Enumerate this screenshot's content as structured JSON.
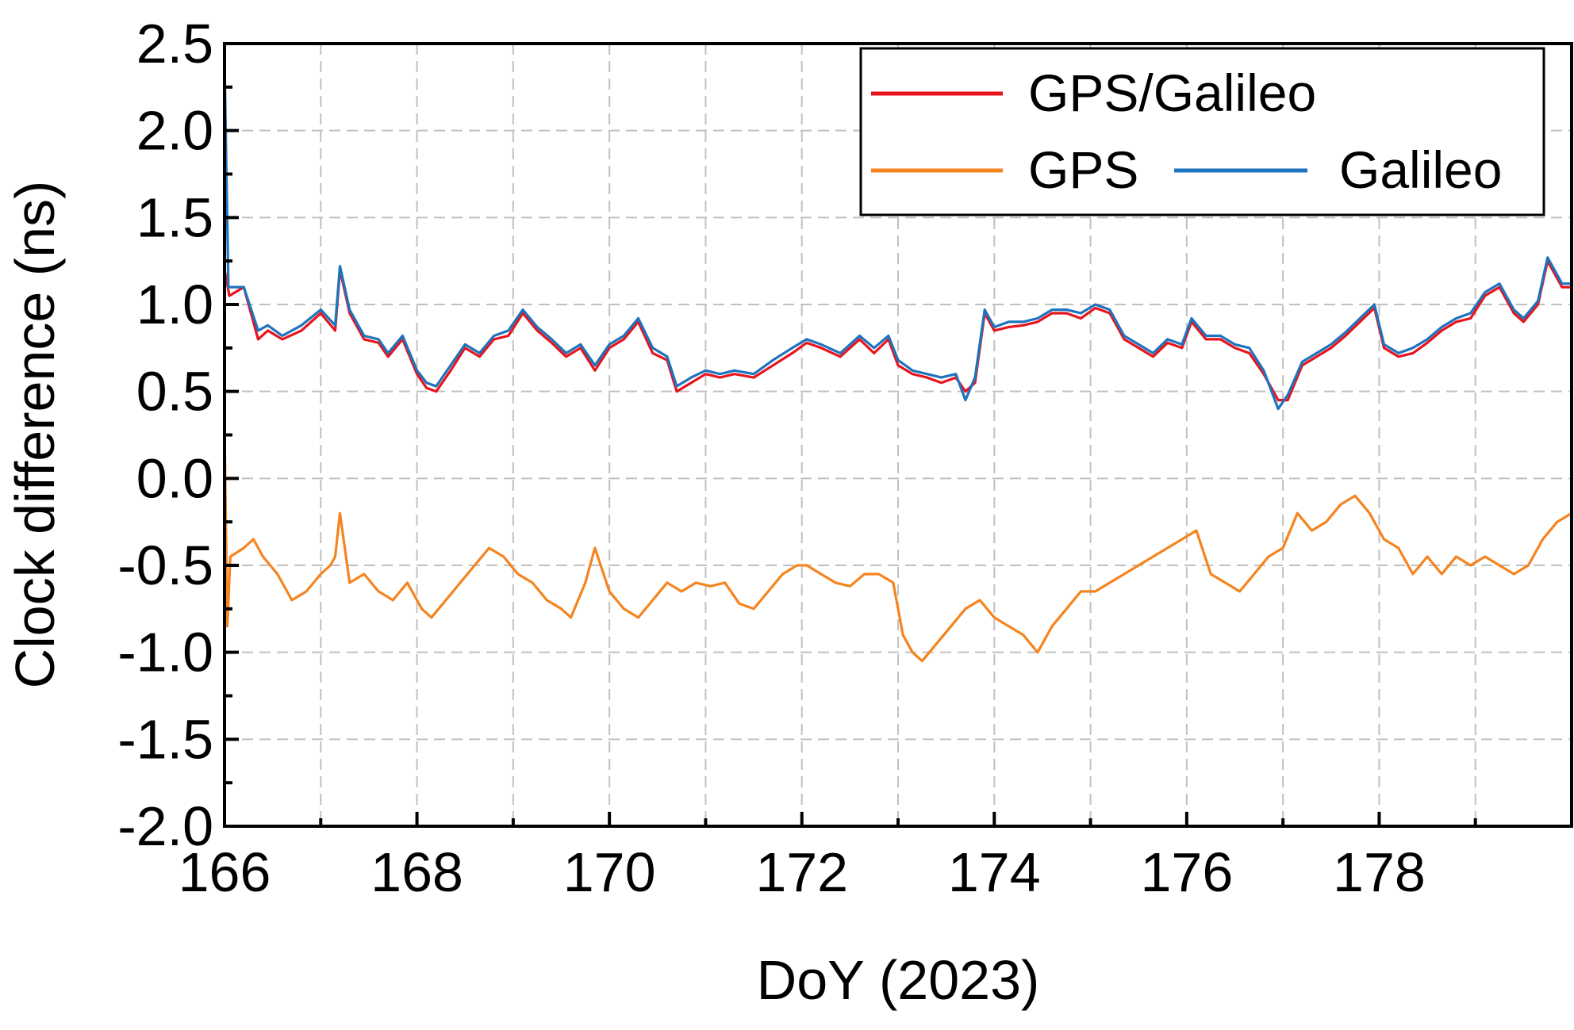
{
  "chart_data": {
    "type": "line",
    "title": "",
    "xlabel": "DoY (2023)",
    "ylabel": "Clock difference (ns)",
    "xlim": [
      166,
      180
    ],
    "ylim": [
      -2.0,
      2.5
    ],
    "xticks": [
      166,
      168,
      170,
      172,
      174,
      176,
      178
    ],
    "xtick_labels": [
      "166",
      "168",
      "170",
      "172",
      "174",
      "176",
      "178"
    ],
    "yticks": [
      -2.0,
      -1.5,
      -1.0,
      -0.5,
      0.0,
      0.5,
      1.0,
      1.5,
      2.0,
      2.5
    ],
    "ytick_labels": [
      "-2.0",
      "-1.5",
      "-1.0",
      "-0.5",
      "0.0",
      "0.5",
      "1.0",
      "1.5",
      "2.0",
      "2.5"
    ],
    "grid": true,
    "legend_position": "top-right",
    "series": [
      {
        "name": "GPS/Galileo",
        "color": "#e8141c",
        "x": [
          166.0,
          166.05,
          166.2,
          166.35,
          166.45,
          166.6,
          166.8,
          167.0,
          167.15,
          167.2,
          167.3,
          167.45,
          167.6,
          167.7,
          167.85,
          168.0,
          168.1,
          168.2,
          168.35,
          168.5,
          168.65,
          168.8,
          168.95,
          169.1,
          169.25,
          169.4,
          169.55,
          169.7,
          169.85,
          170.0,
          170.15,
          170.3,
          170.45,
          170.6,
          170.7,
          170.85,
          171.0,
          171.15,
          171.3,
          171.5,
          171.7,
          171.9,
          172.05,
          172.2,
          172.4,
          172.6,
          172.75,
          172.9,
          173.0,
          173.15,
          173.3,
          173.45,
          173.6,
          173.7,
          173.8,
          173.9,
          174.0,
          174.15,
          174.3,
          174.45,
          174.6,
          174.75,
          174.9,
          175.05,
          175.2,
          175.35,
          175.5,
          175.65,
          175.8,
          175.95,
          176.05,
          176.2,
          176.35,
          176.5,
          176.65,
          176.8,
          176.95,
          177.05,
          177.2,
          177.35,
          177.5,
          177.65,
          177.8,
          177.95,
          178.05,
          178.2,
          178.35,
          178.5,
          178.65,
          178.8,
          178.95,
          179.1,
          179.25,
          179.4,
          179.5,
          179.65,
          179.75,
          179.9,
          180.0
        ],
        "y": [
          1.2,
          1.05,
          1.1,
          0.8,
          0.85,
          0.8,
          0.85,
          0.95,
          0.85,
          1.2,
          0.95,
          0.8,
          0.78,
          0.7,
          0.8,
          0.6,
          0.52,
          0.5,
          0.62,
          0.75,
          0.7,
          0.8,
          0.82,
          0.95,
          0.85,
          0.78,
          0.7,
          0.75,
          0.62,
          0.75,
          0.8,
          0.9,
          0.72,
          0.68,
          0.5,
          0.55,
          0.6,
          0.58,
          0.6,
          0.58,
          0.65,
          0.72,
          0.78,
          0.75,
          0.7,
          0.8,
          0.72,
          0.8,
          0.65,
          0.6,
          0.58,
          0.55,
          0.58,
          0.5,
          0.55,
          0.95,
          0.85,
          0.87,
          0.88,
          0.9,
          0.95,
          0.95,
          0.92,
          0.98,
          0.95,
          0.8,
          0.75,
          0.7,
          0.78,
          0.75,
          0.9,
          0.8,
          0.8,
          0.75,
          0.72,
          0.6,
          0.45,
          0.45,
          0.65,
          0.7,
          0.75,
          0.82,
          0.9,
          0.98,
          0.75,
          0.7,
          0.72,
          0.78,
          0.85,
          0.9,
          0.92,
          1.05,
          1.1,
          0.95,
          0.9,
          1.0,
          1.25,
          1.1,
          1.1
        ]
      },
      {
        "name": "GPS",
        "color": "#f5841f",
        "x": [
          166.0,
          166.03,
          166.06,
          166.2,
          166.3,
          166.4,
          166.55,
          166.7,
          166.85,
          167.0,
          167.1,
          167.15,
          167.2,
          167.3,
          167.45,
          167.6,
          167.75,
          167.9,
          168.05,
          168.15,
          168.3,
          168.45,
          168.6,
          168.75,
          168.9,
          169.05,
          169.2,
          169.35,
          169.5,
          169.6,
          169.75,
          169.85,
          170.0,
          170.15,
          170.3,
          170.45,
          170.6,
          170.75,
          170.9,
          171.05,
          171.2,
          171.35,
          171.5,
          171.65,
          171.8,
          171.95,
          172.05,
          172.2,
          172.35,
          172.5,
          172.65,
          172.8,
          172.95,
          173.05,
          173.15,
          173.25,
          173.4,
          173.55,
          173.7,
          173.85,
          174.0,
          174.15,
          174.3,
          174.45,
          174.6,
          174.75,
          174.9,
          175.05,
          175.2,
          175.35,
          175.5,
          175.65,
          175.8,
          175.95,
          176.1,
          176.25,
          176.4,
          176.55,
          176.7,
          176.85,
          177.0,
          177.15,
          177.3,
          177.45,
          177.6,
          177.75,
          177.9,
          178.05,
          178.2,
          178.35,
          178.5,
          178.65,
          178.8,
          178.95,
          179.1,
          179.25,
          179.4,
          179.55,
          179.7,
          179.85,
          180.0
        ],
        "y": [
          0.3,
          -0.85,
          -0.45,
          -0.4,
          -0.35,
          -0.45,
          -0.55,
          -0.7,
          -0.65,
          -0.55,
          -0.5,
          -0.45,
          -0.2,
          -0.6,
          -0.55,
          -0.65,
          -0.7,
          -0.6,
          -0.75,
          -0.8,
          -0.7,
          -0.6,
          -0.5,
          -0.4,
          -0.45,
          -0.55,
          -0.6,
          -0.7,
          -0.75,
          -0.8,
          -0.6,
          -0.4,
          -0.65,
          -0.75,
          -0.8,
          -0.7,
          -0.6,
          -0.65,
          -0.6,
          -0.62,
          -0.6,
          -0.72,
          -0.75,
          -0.65,
          -0.55,
          -0.5,
          -0.5,
          -0.55,
          -0.6,
          -0.62,
          -0.55,
          -0.55,
          -0.6,
          -0.9,
          -1.0,
          -1.05,
          -0.95,
          -0.85,
          -0.75,
          -0.7,
          -0.8,
          -0.85,
          -0.9,
          -1.0,
          -0.85,
          -0.75,
          -0.65,
          -0.65,
          -0.6,
          -0.55,
          -0.5,
          -0.45,
          -0.4,
          -0.35,
          -0.3,
          -0.55,
          -0.6,
          -0.65,
          -0.55,
          -0.45,
          -0.4,
          -0.2,
          -0.3,
          -0.25,
          -0.15,
          -0.1,
          -0.2,
          -0.35,
          -0.4,
          -0.55,
          -0.45,
          -0.55,
          -0.45,
          -0.5,
          -0.45,
          -0.5,
          -0.55,
          -0.5,
          -0.35,
          -0.25,
          -0.2
        ]
      },
      {
        "name": "Galileo",
        "color": "#1e73be",
        "x": [
          166.0,
          166.04,
          166.2,
          166.35,
          166.45,
          166.6,
          166.8,
          167.0,
          167.15,
          167.2,
          167.3,
          167.45,
          167.6,
          167.7,
          167.85,
          168.0,
          168.1,
          168.2,
          168.35,
          168.5,
          168.65,
          168.8,
          168.95,
          169.1,
          169.25,
          169.4,
          169.55,
          169.7,
          169.85,
          170.0,
          170.15,
          170.3,
          170.45,
          170.6,
          170.7,
          170.85,
          171.0,
          171.15,
          171.3,
          171.5,
          171.7,
          171.9,
          172.05,
          172.2,
          172.4,
          172.6,
          172.75,
          172.9,
          173.0,
          173.15,
          173.3,
          173.45,
          173.6,
          173.7,
          173.8,
          173.9,
          174.0,
          174.15,
          174.3,
          174.45,
          174.6,
          174.75,
          174.9,
          175.05,
          175.2,
          175.35,
          175.5,
          175.65,
          175.8,
          175.95,
          176.05,
          176.2,
          176.35,
          176.5,
          176.65,
          176.8,
          176.95,
          177.05,
          177.2,
          177.35,
          177.5,
          177.65,
          177.8,
          177.95,
          178.05,
          178.2,
          178.35,
          178.5,
          178.65,
          178.8,
          178.95,
          179.1,
          179.25,
          179.4,
          179.5,
          179.65,
          179.75,
          179.9,
          180.0
        ],
        "y": [
          2.4,
          1.1,
          1.1,
          0.85,
          0.88,
          0.82,
          0.88,
          0.97,
          0.88,
          1.22,
          0.97,
          0.82,
          0.8,
          0.72,
          0.82,
          0.62,
          0.55,
          0.53,
          0.65,
          0.77,
          0.72,
          0.82,
          0.85,
          0.97,
          0.87,
          0.8,
          0.72,
          0.77,
          0.65,
          0.77,
          0.82,
          0.92,
          0.75,
          0.7,
          0.53,
          0.58,
          0.62,
          0.6,
          0.62,
          0.6,
          0.68,
          0.75,
          0.8,
          0.77,
          0.72,
          0.82,
          0.75,
          0.82,
          0.68,
          0.62,
          0.6,
          0.58,
          0.6,
          0.45,
          0.58,
          0.97,
          0.87,
          0.9,
          0.9,
          0.92,
          0.97,
          0.97,
          0.95,
          1.0,
          0.97,
          0.82,
          0.77,
          0.72,
          0.8,
          0.77,
          0.92,
          0.82,
          0.82,
          0.77,
          0.75,
          0.62,
          0.4,
          0.48,
          0.67,
          0.72,
          0.77,
          0.84,
          0.92,
          1.0,
          0.77,
          0.72,
          0.75,
          0.8,
          0.87,
          0.92,
          0.95,
          1.07,
          1.12,
          0.97,
          0.92,
          1.02,
          1.27,
          1.12,
          1.12
        ]
      }
    ],
    "legend_rows": [
      [
        "GPS/Galileo"
      ],
      [
        "GPS",
        "Galileo"
      ]
    ]
  }
}
